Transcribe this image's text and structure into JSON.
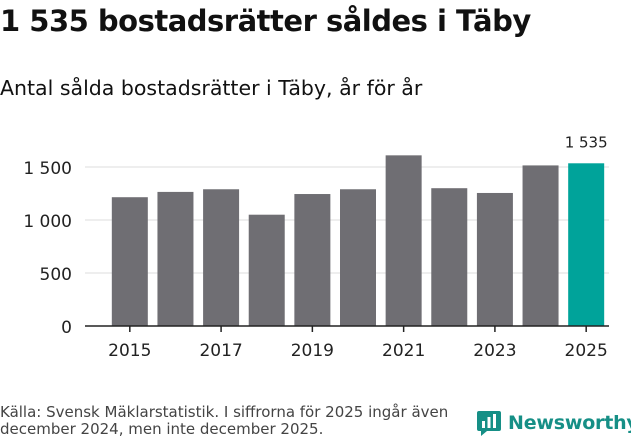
{
  "header": {
    "title": "1 535 bostadsrätter såldes i Täby",
    "subtitle": "Antal sålda bostadsrätter i Täby, år för år"
  },
  "footer": {
    "source": "Källa: Svensk Mäklarstatistik. I siffrorna för 2025 ingår även december 2024, men inte december 2025.",
    "brand": "Newsworthy"
  },
  "colors": {
    "bar": "#6f6e73",
    "highlight": "#00a39a",
    "grid": "#dddddd",
    "axis": "#222222",
    "brand": "#168f86"
  },
  "chart_data": {
    "type": "bar",
    "title": "Antal sålda bostadsrätter i Täby, år för år",
    "xlabel": "",
    "ylabel": "",
    "categories": [
      "2015",
      "2016",
      "2017",
      "2018",
      "2019",
      "2020",
      "2021",
      "2022",
      "2023",
      "2024",
      "2025"
    ],
    "values": [
      1215,
      1265,
      1290,
      1050,
      1245,
      1290,
      1610,
      1300,
      1255,
      1515,
      1535
    ],
    "x_tick_labels": [
      "2015",
      "2017",
      "2019",
      "2021",
      "2023",
      "2025"
    ],
    "y_ticks": [
      0,
      500,
      1000,
      1500
    ],
    "y_tick_labels": [
      "0",
      "500",
      "1 000",
      "1 500"
    ],
    "ylim": [
      0,
      1650
    ],
    "grid": true,
    "highlight_index": 10,
    "data_labels": [
      {
        "index": 10,
        "text": "1 535"
      }
    ]
  }
}
